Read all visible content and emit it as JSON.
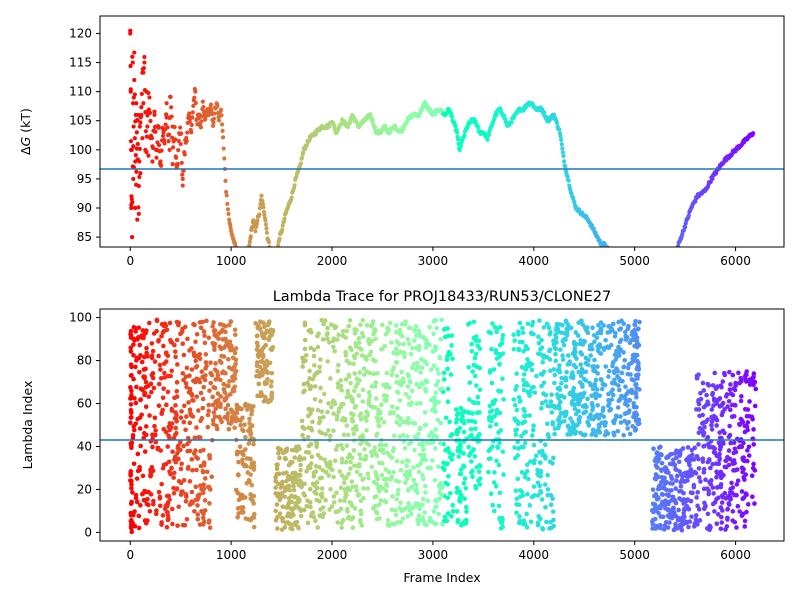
{
  "chart_data": [
    {
      "type": "scatter",
      "title": "",
      "xlabel": "",
      "ylabel": "ΔG (kT)",
      "ylabel_symbol": "Δ",
      "ylabel_var": "G",
      "ylabel_unit": " (kT)",
      "xlim": [
        -300,
        6480
      ],
      "ylim": [
        83.3,
        123
      ],
      "xticks": [
        0,
        1000,
        2000,
        3000,
        4000,
        5000,
        6000
      ],
      "yticks": [
        85,
        90,
        95,
        100,
        105,
        110,
        115,
        120
      ],
      "hline": 96.7,
      "hline_color": "#1f77b4",
      "colormap": "rainbow (red at frame 0 through green, cyan, blue to violet at last frame)",
      "grid": false,
      "trace": [
        [
          0,
          120
        ],
        [
          5,
          110
        ],
        [
          10,
          90
        ],
        [
          20,
          92
        ],
        [
          30,
          100
        ],
        [
          40,
          116
        ],
        [
          50,
          104
        ],
        [
          60,
          96
        ],
        [
          70,
          106
        ],
        [
          80,
          89
        ],
        [
          100,
          104
        ],
        [
          120,
          112
        ],
        [
          140,
          115
        ],
        [
          160,
          100
        ],
        [
          180,
          109
        ],
        [
          200,
          104
        ],
        [
          220,
          100
        ],
        [
          240,
          106
        ],
        [
          260,
          99
        ],
        [
          280,
          104
        ],
        [
          300,
          97
        ],
        [
          320,
          104
        ],
        [
          340,
          101
        ],
        [
          360,
          107
        ],
        [
          380,
          101
        ],
        [
          400,
          110
        ],
        [
          420,
          99
        ],
        [
          440,
          103
        ],
        [
          460,
          96
        ],
        [
          480,
          101
        ],
        [
          500,
          104
        ],
        [
          520,
          94
        ],
        [
          540,
          100
        ],
        [
          560,
          103
        ],
        [
          580,
          105
        ],
        [
          600,
          104
        ],
        [
          620,
          106
        ],
        [
          640,
          110
        ],
        [
          660,
          105
        ],
        [
          680,
          106
        ],
        [
          700,
          104
        ],
        [
          720,
          108
        ],
        [
          740,
          105
        ],
        [
          760,
          107
        ],
        [
          780,
          106
        ],
        [
          800,
          108
        ],
        [
          820,
          104
        ],
        [
          840,
          107
        ],
        [
          860,
          108
        ],
        [
          880,
          105
        ],
        [
          900,
          107
        ],
        [
          920,
          102
        ],
        [
          950,
          93
        ],
        [
          980,
          88
        ],
        [
          1000,
          86
        ],
        [
          1040,
          83.5
        ],
        [
          1120,
          80
        ],
        [
          1160,
          82
        ],
        [
          1180,
          83.5
        ],
        [
          1200,
          86
        ],
        [
          1220,
          88
        ],
        [
          1240,
          86
        ],
        [
          1260,
          88
        ],
        [
          1280,
          89
        ],
        [
          1300,
          92
        ],
        [
          1320,
          90
        ],
        [
          1340,
          88
        ],
        [
          1360,
          85
        ],
        [
          1380,
          83.5
        ],
        [
          1420,
          80
        ],
        [
          1460,
          83
        ],
        [
          1480,
          85
        ],
        [
          1500,
          86
        ],
        [
          1540,
          89
        ],
        [
          1600,
          92
        ],
        [
          1640,
          95
        ],
        [
          1680,
          97
        ],
        [
          1720,
          100
        ],
        [
          1780,
          102
        ],
        [
          1840,
          103
        ],
        [
          1900,
          104
        ],
        [
          1960,
          104
        ],
        [
          2000,
          105
        ],
        [
          2040,
          103
        ],
        [
          2100,
          105
        ],
        [
          2160,
          104
        ],
        [
          2200,
          106
        ],
        [
          2260,
          104
        ],
        [
          2320,
          105
        ],
        [
          2380,
          106
        ],
        [
          2420,
          104
        ],
        [
          2440,
          103
        ],
        [
          2480,
          103
        ],
        [
          2520,
          104
        ],
        [
          2560,
          103
        ],
        [
          2620,
          104
        ],
        [
          2680,
          103
        ],
        [
          2740,
          105
        ],
        [
          2800,
          106
        ],
        [
          2860,
          106
        ],
        [
          2920,
          108
        ],
        [
          2960,
          107
        ],
        [
          3000,
          106
        ],
        [
          3060,
          107
        ],
        [
          3120,
          106
        ],
        [
          3160,
          107
        ],
        [
          3200,
          105
        ],
        [
          3240,
          103
        ],
        [
          3260,
          100
        ],
        [
          3300,
          102
        ],
        [
          3340,
          104
        ],
        [
          3380,
          105
        ],
        [
          3420,
          105
        ],
        [
          3460,
          103
        ],
        [
          3500,
          103
        ],
        [
          3540,
          102
        ],
        [
          3580,
          104
        ],
        [
          3620,
          106
        ],
        [
          3660,
          107
        ],
        [
          3700,
          106
        ],
        [
          3740,
          104
        ],
        [
          3780,
          105
        ],
        [
          3820,
          106
        ],
        [
          3860,
          107
        ],
        [
          3900,
          107
        ],
        [
          3940,
          108
        ],
        [
          3980,
          108
        ],
        [
          4020,
          107
        ],
        [
          4080,
          107
        ],
        [
          4140,
          105
        ],
        [
          4200,
          106
        ],
        [
          4260,
          103
        ],
        [
          4300,
          98
        ],
        [
          4340,
          95
        ],
        [
          4380,
          92
        ],
        [
          4420,
          90
        ],
        [
          4480,
          89
        ],
        [
          4540,
          88
        ],
        [
          4600,
          86
        ],
        [
          4660,
          84
        ],
        [
          4720,
          83.5
        ],
        [
          4780,
          80
        ],
        [
          5380,
          80
        ],
        [
          5430,
          83.5
        ],
        [
          5460,
          85
        ],
        [
          5500,
          87
        ],
        [
          5560,
          90
        ],
        [
          5620,
          92
        ],
        [
          5700,
          93
        ],
        [
          5760,
          95
        ],
        [
          5800,
          96
        ],
        [
          5840,
          97
        ],
        [
          5880,
          98
        ],
        [
          5940,
          99
        ],
        [
          6000,
          100
        ],
        [
          6060,
          101
        ],
        [
          6120,
          102
        ],
        [
          6180,
          103
        ]
      ],
      "early_scatter": [
        [
          0,
          120
        ],
        [
          5,
          110
        ],
        [
          8,
          100
        ],
        [
          10,
          90
        ],
        [
          12,
          92
        ],
        [
          15,
          100
        ],
        [
          18,
          85
        ],
        [
          20,
          116
        ],
        [
          25,
          115
        ],
        [
          28,
          108
        ],
        [
          30,
          95
        ],
        [
          33,
          104
        ],
        [
          36,
          97
        ],
        [
          40,
          112
        ],
        [
          45,
          102
        ],
        [
          48,
          90
        ],
        [
          50,
          98
        ],
        [
          55,
          106
        ],
        [
          58,
          94
        ],
        [
          60,
          108
        ],
        [
          65,
          103
        ],
        [
          70,
          88
        ],
        [
          75,
          101
        ],
        [
          80,
          106
        ],
        [
          85,
          89
        ],
        [
          90,
          98
        ],
        [
          95,
          104
        ],
        [
          100,
          96
        ],
        [
          110,
          106
        ],
        [
          120,
          102
        ],
        [
          130,
          108
        ],
        [
          140,
          115
        ],
        [
          150,
          100
        ],
        [
          160,
          110
        ],
        [
          170,
          104
        ],
        [
          180,
          99
        ],
        [
          190,
          109
        ],
        [
          200,
          102
        ],
        [
          220,
          98
        ],
        [
          240,
          106
        ],
        [
          260,
          100
        ],
        [
          280,
          104
        ],
        [
          300,
          98
        ],
        [
          330,
          103
        ],
        [
          360,
          108
        ],
        [
          390,
          100
        ],
        [
          420,
          104
        ],
        [
          460,
          97
        ],
        [
          500,
          101
        ],
        [
          520,
          95
        ]
      ]
    },
    {
      "type": "scatter",
      "title": "Lambda Trace for PROJ18433/RUN53/CLONE27",
      "xlabel": "Frame Index",
      "ylabel": "Lambda Index",
      "xlim": [
        -300,
        6480
      ],
      "ylim": [
        -4,
        104
      ],
      "xticks": [
        0,
        1000,
        2000,
        3000,
        4000,
        5000,
        6000
      ],
      "yticks": [
        0,
        20,
        40,
        60,
        80,
        100
      ],
      "hline": 43,
      "hline_color": "#1f77b4",
      "colormap": "rainbow (red at frame 0 through green, cyan, blue to violet at last frame)",
      "grid": false,
      "n_frames": 6200,
      "coverage": [
        {
          "x": [
            0,
            130
          ],
          "y": [
            0,
            99
          ]
        },
        {
          "x": [
            130,
            820
          ],
          "y": [
            2,
            99
          ]
        },
        {
          "x": [
            820,
            1050
          ],
          "y": [
            48,
            99
          ]
        },
        {
          "x": [
            1050,
            1230
          ],
          "y": [
            2,
            60
          ]
        },
        {
          "x": [
            1240,
            1420
          ],
          "y": [
            60,
            99
          ]
        },
        {
          "x": [
            1440,
            1700
          ],
          "y": [
            1,
            40
          ]
        },
        {
          "x": [
            1700,
            2240
          ],
          "y": [
            2,
            99
          ]
        },
        {
          "x": [
            2240,
            3200
          ],
          "y": [
            3,
            99
          ]
        },
        {
          "x": [
            3230,
            3340
          ],
          "y": [
            2,
            60
          ]
        },
        {
          "x": [
            3350,
            3470
          ],
          "y": [
            20,
            99
          ]
        },
        {
          "x": [
            3550,
            3700
          ],
          "y": [
            1,
            99
          ]
        },
        {
          "x": [
            3800,
            4200
          ],
          "y": [
            1,
            99
          ]
        },
        {
          "x": [
            4200,
            5050
          ],
          "y": [
            45,
            99
          ]
        },
        {
          "x": [
            5170,
            5600
          ],
          "y": [
            1,
            40
          ]
        },
        {
          "x": [
            5600,
            6200
          ],
          "y": [
            1,
            75
          ]
        }
      ]
    }
  ]
}
